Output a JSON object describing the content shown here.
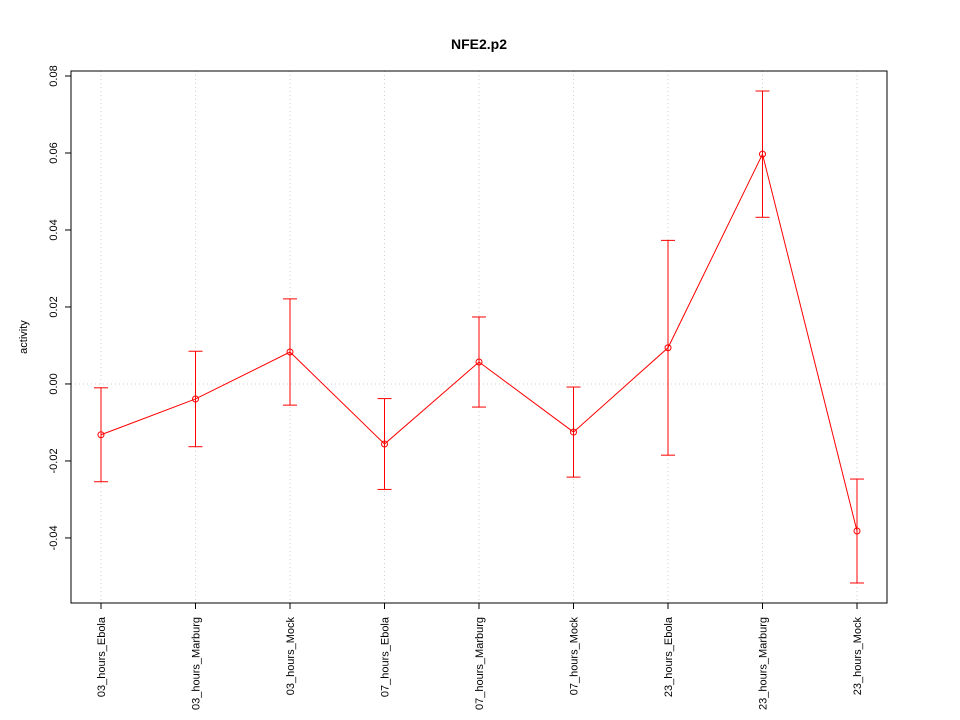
{
  "chart_data": {
    "type": "line",
    "title": "NFE2.p2",
    "y_label": "activity",
    "categories": [
      "03_hours_Ebola",
      "03_hours_Marburg",
      "03_hours_Mock",
      "07_hours_Ebola",
      "07_hours_Marburg",
      "07_hours_Mock",
      "23_hours_Ebola",
      "23_hours_Marburg",
      "23_hours_Mock"
    ],
    "series": [
      {
        "color": "#ff0000",
        "values": [
          -0.0132,
          -0.0039,
          0.0083,
          -0.0156,
          0.0057,
          -0.0125,
          0.0094,
          0.0597,
          -0.0382
        ],
        "errors": [
          0.0122,
          0.0124,
          0.0138,
          0.0118,
          0.0117,
          0.0117,
          0.0279,
          0.0164,
          0.0135
        ]
      }
    ],
    "ylim": [
      -0.0569,
      0.0813
    ],
    "yticks": [
      {
        "value": -0.04,
        "label": "-0.04"
      },
      {
        "value": -0.02,
        "label": "-0.02"
      },
      {
        "value": 0,
        "label": "0.00"
      },
      {
        "value": 0.02,
        "label": "0.02"
      },
      {
        "value": 0.04,
        "label": "0.04"
      },
      {
        "value": 0.06,
        "label": "0.06"
      },
      {
        "value": 0.08,
        "label": "0.08"
      }
    ],
    "grid": true,
    "reference_line": 0
  }
}
